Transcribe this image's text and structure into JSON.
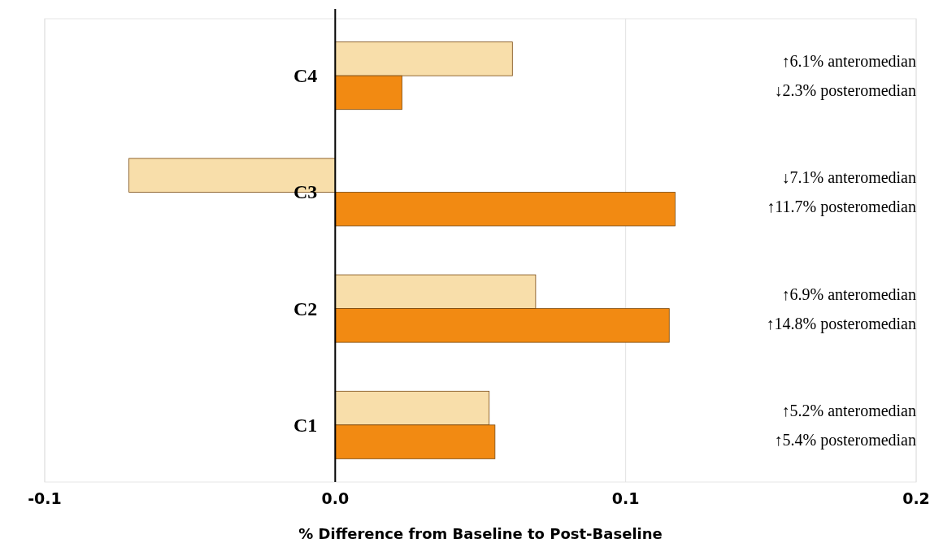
{
  "chart_data": {
    "type": "bar",
    "orientation": "horizontal",
    "xlabel": "% Difference from Baseline to Post-Baseline",
    "categories": [
      "C4",
      "C3",
      "C2",
      "C1"
    ],
    "series": [
      {
        "color": "#f8deaa",
        "values": [
          0.061,
          -0.071,
          0.069,
          0.053
        ]
      },
      {
        "color": "#f28a12",
        "values": [
          0.023,
          0.117,
          0.115,
          0.055
        ]
      }
    ],
    "xlim": [
      -0.1,
      0.2
    ],
    "xticks": [
      -0.1,
      {
        "value": 0,
        "label": "0.0"
      },
      0.1,
      0.2
    ],
    "grid": "x",
    "annotations": [
      "↑6.1% anteromedian",
      "↓2.3% posteromedian",
      "↓7.1% anteromedian",
      "↑11.7% posteromedian",
      "↑6.9% anteromedian",
      "↑14.8% posteromedian",
      "↑5.2% anteromedian",
      "↑5.4% posteromedian"
    ]
  }
}
